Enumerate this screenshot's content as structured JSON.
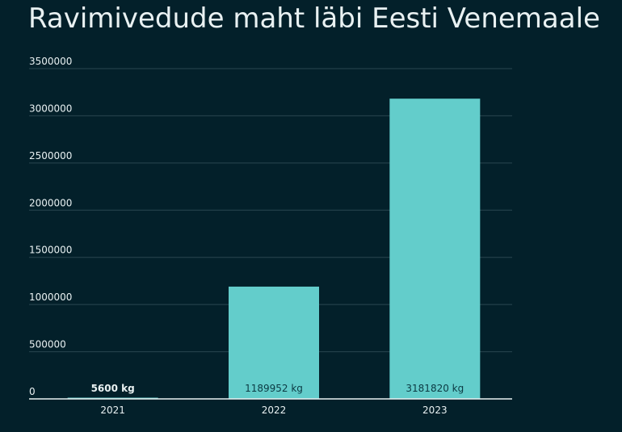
{
  "chart_data": {
    "type": "bar",
    "title": "Ravimivedude maht läbi Eesti Venemaale",
    "xlabel": "",
    "ylabel": "",
    "categories": [
      "2021",
      "2022",
      "2023"
    ],
    "values": [
      5600,
      1189952,
      3181820
    ],
    "data_labels": [
      "5600 kg",
      "1189952 kg",
      "3181820 kg"
    ],
    "unit": "kg",
    "ylim": [
      0,
      3500000
    ],
    "yticks": [
      "0",
      "500000",
      "1000000",
      "1500000",
      "2000000",
      "2500000",
      "3000000",
      "3500000"
    ],
    "grid": true,
    "legend": "none",
    "colors": {
      "background": "#03202a",
      "bar": "#63cdcb",
      "grid": "#2a4650",
      "axis": "#e9f1f2",
      "text": "#e9f1f2",
      "label_inside": "#0b3a43"
    }
  }
}
